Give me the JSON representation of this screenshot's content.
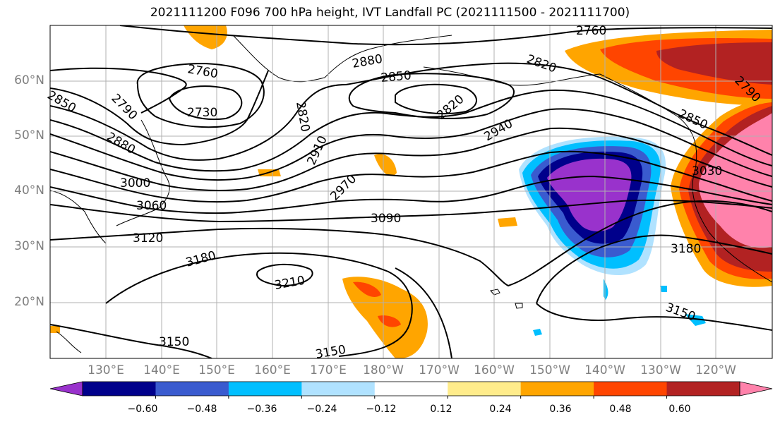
{
  "title": "2021111200 F096 700 hPa height, IVT Landfall PC (2021111500 - 2021111700)",
  "map": {
    "lat_labels": [
      {
        "text": "60°N",
        "lat": 60
      },
      {
        "text": "50°N",
        "lat": 50
      },
      {
        "text": "40°N",
        "lat": 40
      },
      {
        "text": "30°N",
        "lat": 30
      },
      {
        "text": "20°N",
        "lat": 20
      }
    ],
    "lon_labels": [
      {
        "text": "130°E",
        "lon": 130
      },
      {
        "text": "140°E",
        "lon": 140
      },
      {
        "text": "150°E",
        "lon": 150
      },
      {
        "text": "160°E",
        "lon": 160
      },
      {
        "text": "170°E",
        "lon": 170
      },
      {
        "text": "180°W",
        "lon": 180
      },
      {
        "text": "170°W",
        "lon": 190
      },
      {
        "text": "160°W",
        "lon": 200
      },
      {
        "text": "150°W",
        "lon": 210
      },
      {
        "text": "140°W",
        "lon": 220
      },
      {
        "text": "130°W",
        "lon": 230
      },
      {
        "text": "120°W",
        "lon": 240
      }
    ],
    "contour_labels": [
      "2760",
      "2880",
      "2850",
      "2820",
      "2790",
      "2760",
      "2730",
      "2820",
      "2850",
      "2820",
      "2790",
      "2850",
      "2940",
      "2910",
      "2970",
      "2880",
      "3030",
      "3000",
      "3060",
      "3090",
      "3120",
      "3180",
      "3180",
      "3210",
      "3150",
      "3150",
      "3150"
    ]
  },
  "colorbar": {
    "colors": [
      "#9932cc",
      "#00008b",
      "#3a5bcf",
      "#00bfff",
      "#b0e2ff",
      "#ffffff",
      "#ffec8b",
      "#ffa500",
      "#ff4500",
      "#b22222",
      "#ff82ab"
    ],
    "ticks": [
      "−0.60",
      "−0.48",
      "−0.36",
      "−0.24",
      "−0.12",
      "0.12",
      "0.24",
      "0.36",
      "0.48",
      "0.60"
    ]
  }
}
